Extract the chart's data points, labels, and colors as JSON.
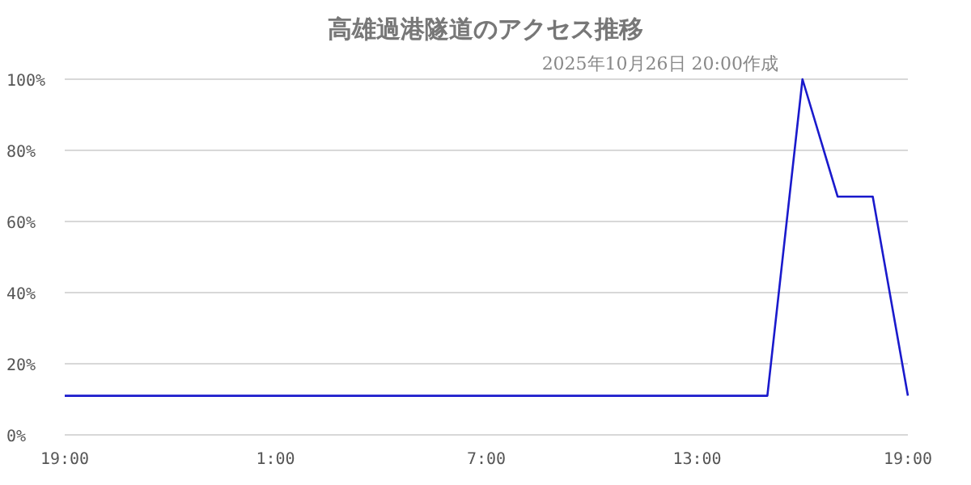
{
  "chart_data": {
    "type": "line",
    "title": "高雄過港隧道のアクセス推移",
    "subtitle": "2025年10月26日 20:00作成",
    "x": [
      "2025-10-25T19:00",
      "2025-10-26T15:00",
      "2025-10-26T16:00",
      "2025-10-26T17:00",
      "2025-10-26T18:00",
      "2025-10-26T19:00"
    ],
    "series": [
      {
        "color": "#1a1acc",
        "values": [
          11,
          11,
          100,
          67,
          67,
          11
        ]
      }
    ],
    "xlim": [
      "2025-10-25T19:00",
      "2025-10-26T19:00"
    ],
    "xticks": [
      {
        "value": "2025-10-25T19:00",
        "label": "19:00"
      },
      {
        "value": "2025-10-26T01:00",
        "label": "1:00"
      },
      {
        "value": "2025-10-26T07:00",
        "label": "7:00"
      },
      {
        "value": "2025-10-26T13:00",
        "label": "13:00"
      },
      {
        "value": "2025-10-26T19:00",
        "label": "19:00"
      }
    ],
    "ylim": [
      0,
      100
    ],
    "yticks": [
      {
        "value": 0,
        "label": "0%"
      },
      {
        "value": 20,
        "label": "20%"
      },
      {
        "value": 40,
        "label": "40%"
      },
      {
        "value": 60,
        "label": "60%"
      },
      {
        "value": 80,
        "label": "80%"
      },
      {
        "value": 100,
        "label": "100%"
      }
    ],
    "grid": "y",
    "marker": "none",
    "line_style": "solid"
  }
}
